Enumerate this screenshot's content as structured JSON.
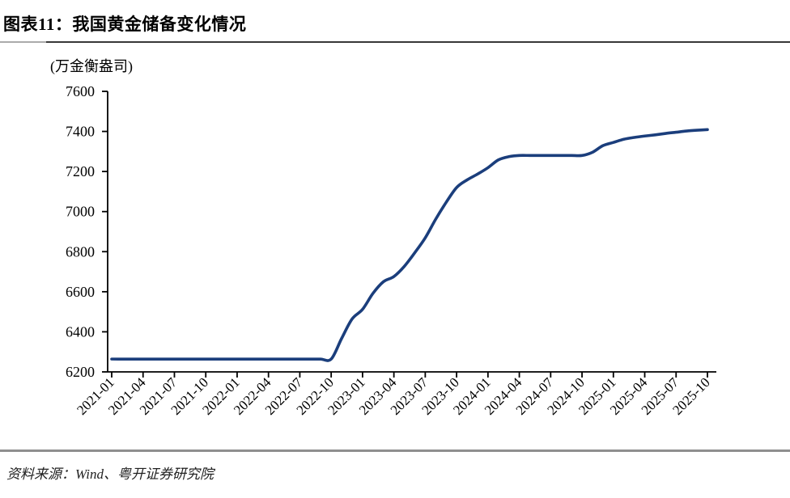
{
  "header": {
    "title": "图表11：我国黄金储备变化情况"
  },
  "footer": {
    "source": "资料来源：Wind、粤开证券研究院"
  },
  "colors": {
    "line": "#1b3e7c",
    "axis": "#000000",
    "title_rule": "#383838",
    "bottom_rule": "#8f8f8f"
  },
  "chart_data": {
    "type": "line",
    "title": "图表11：我国黄金储备变化情况",
    "unit_label": "(万金衡盎司)",
    "ylim": [
      6200,
      7600
    ],
    "yticks": [
      6200,
      6400,
      6600,
      6800,
      7000,
      7200,
      7400,
      7600
    ],
    "grid": false,
    "legend": "none",
    "line_smooth": true,
    "x": [
      "2021-01",
      "2021-02",
      "2021-03",
      "2021-04",
      "2021-05",
      "2021-06",
      "2021-07",
      "2021-08",
      "2021-09",
      "2021-10",
      "2021-11",
      "2021-12",
      "2022-01",
      "2022-02",
      "2022-03",
      "2022-04",
      "2022-05",
      "2022-06",
      "2022-07",
      "2022-08",
      "2022-09",
      "2022-10",
      "2022-11",
      "2022-12",
      "2023-01",
      "2023-02",
      "2023-03",
      "2023-04",
      "2023-05",
      "2023-06",
      "2023-07",
      "2023-08",
      "2023-09",
      "2023-10",
      "2023-11",
      "2023-12",
      "2024-01",
      "2024-02",
      "2024-03",
      "2024-04",
      "2024-05",
      "2024-06",
      "2024-07",
      "2024-08",
      "2024-09",
      "2024-10",
      "2024-11",
      "2024-12",
      "2025-01",
      "2025-02",
      "2025-03",
      "2025-04",
      "2025-05",
      "2025-06",
      "2025-07",
      "2025-08",
      "2025-09",
      "2025-10"
    ],
    "xtick_labels": [
      "2021-01",
      "2021-04",
      "2021-07",
      "2021-10",
      "2022-01",
      "2022-04",
      "2022-07",
      "2022-10",
      "2023-01",
      "2023-04",
      "2023-07",
      "2023-10",
      "2024-01",
      "2024-04",
      "2024-07",
      "2024-10",
      "2025-01",
      "2025-04",
      "2025-07",
      "2025-10"
    ],
    "xtick_every": 3,
    "series": [
      {
        "name": "我国黄金储备",
        "color": "#1b3e7c",
        "values": [
          6264,
          6264,
          6264,
          6264,
          6264,
          6264,
          6264,
          6264,
          6264,
          6264,
          6264,
          6264,
          6264,
          6264,
          6264,
          6264,
          6264,
          6264,
          6264,
          6264,
          6264,
          6264,
          6367,
          6464,
          6512,
          6592,
          6650,
          6676,
          6727,
          6795,
          6869,
          6962,
          7046,
          7120,
          7158,
          7187,
          7219,
          7258,
          7274,
          7280,
          7280,
          7280,
          7280,
          7280,
          7280,
          7280,
          7296,
          7329,
          7345,
          7361,
          7370,
          7377,
          7383,
          7390,
          7396,
          7402,
          7406,
          7409
        ]
      }
    ]
  }
}
